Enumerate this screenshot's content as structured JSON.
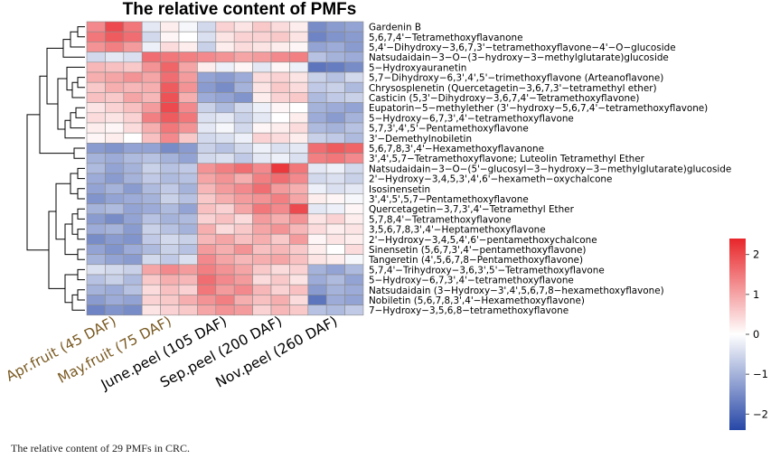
{
  "chart_data": {
    "type": "heatmap",
    "title": "The relative content of PMFs",
    "columns": [
      {
        "label": "Apr.fruit (45 DAF)",
        "color": "#7a5a22"
      },
      {
        "label": "May.fruit (75 DAF)",
        "color": "#7a5a22"
      },
      {
        "label": "June.peel (105 DAF)",
        "color": "#000000"
      },
      {
        "label": "Sep.peel (200 DAF)",
        "color": "#000000"
      },
      {
        "label": "Nov.peel (260 DAF)",
        "color": "#000000"
      }
    ],
    "replicates_per_group": 3,
    "rows": [
      {
        "label": "Gardenin B",
        "values": [
          1.3,
          2.0,
          1.5,
          -0.3,
          0.2,
          -0.1,
          -0.5,
          0.5,
          0.3,
          0.6,
          0.4,
          0.2,
          -1.5,
          -1.3,
          -1.2
        ]
      },
      {
        "label": "5,6,7,4'−Tetramethoxyflavanone",
        "values": [
          1.5,
          1.8,
          1.6,
          -0.5,
          0.1,
          0.0,
          -0.4,
          0.3,
          0.5,
          0.5,
          0.6,
          0.3,
          -1.6,
          -1.4,
          -1.3
        ]
      },
      {
        "label": "5,4'−Dihydroxy−3,6,7,3'−tetramethoxyflavone−4'−O−glucoside",
        "values": [
          1.2,
          1.4,
          1.1,
          -0.2,
          0.4,
          0.2,
          -0.6,
          0.2,
          0.4,
          0.3,
          0.2,
          0.1,
          -1.2,
          -1.1,
          -1.3
        ]
      },
      {
        "label": "Natsudaidain−3−O−(3−hydroxy−3−methylglutarate)glucoside",
        "values": [
          -0.5,
          -0.3,
          -0.4,
          1.6,
          1.5,
          1.4,
          1.3,
          1.2,
          1.0,
          1.1,
          1.3,
          1.4,
          -0.8,
          -1.0,
          -1.1
        ]
      },
      {
        "label": "5−Hydroxyauranetin",
        "values": [
          0.8,
          0.7,
          0.6,
          1.2,
          1.7,
          1.0,
          0.2,
          -0.2,
          0.1,
          -0.3,
          0.1,
          -0.2,
          -1.8,
          -1.7,
          -1.5
        ]
      },
      {
        "label": "5,7−Dihydroxy−6,3',4',5'−trimethoxyflavone (Arteanoflavone)",
        "values": [
          0.9,
          1.0,
          1.2,
          1.0,
          1.6,
          1.1,
          -1.2,
          -1.3,
          -1.1,
          0.4,
          0.5,
          0.3,
          -0.6,
          -0.8,
          -0.5
        ]
      },
      {
        "label": "Chrysosplenetin (Quercetagetin−3,6,7,3'−tetramethyl ether)",
        "values": [
          0.6,
          0.9,
          0.8,
          0.9,
          1.8,
          1.2,
          -1.3,
          -1.5,
          -1.0,
          0.3,
          0.6,
          0.4,
          -0.7,
          -0.6,
          -0.9
        ]
      },
      {
        "label": "Casticin (5,3'−Dihydroxy−3,6,7,4'−Tetramethoxyflavone)",
        "values": [
          0.7,
          0.6,
          1.0,
          0.8,
          1.9,
          0.9,
          -1.1,
          -1.2,
          -1.4,
          0.2,
          0.5,
          0.6,
          -0.9,
          -0.7,
          -0.6
        ]
      },
      {
        "label": "Eupatorin−5−methylether (3'−hydroxy−5,6,7,4'−tetramethoxyflavone)",
        "values": [
          0.3,
          0.5,
          0.7,
          1.1,
          2.0,
          1.3,
          -0.6,
          -0.9,
          -0.5,
          -0.2,
          0.1,
          0.0,
          -1.0,
          -1.1,
          -1.2
        ]
      },
      {
        "label": "5−Hydroxy−6,7,3',4'−tetramethoxyflavone",
        "values": [
          0.4,
          0.3,
          0.5,
          1.4,
          1.8,
          1.5,
          -0.4,
          -0.3,
          -0.6,
          -0.3,
          0.0,
          0.2,
          -1.1,
          -1.3,
          -1.0
        ]
      },
      {
        "label": "5,7,3',4',5'−Pentamethoxyflavone",
        "values": [
          0.2,
          0.1,
          0.4,
          0.9,
          1.5,
          1.2,
          -0.3,
          -0.1,
          -0.5,
          0.1,
          0.2,
          0.4,
          -0.9,
          -1.0,
          -0.8
        ]
      },
      {
        "label": "3'−Demethylnobiletin",
        "values": [
          0.1,
          0.2,
          0.0,
          0.7,
          1.3,
          0.6,
          -0.5,
          -0.4,
          -0.2,
          0.5,
          0.4,
          0.2,
          -0.6,
          -0.7,
          -0.9
        ]
      },
      {
        "label": "5,6,7,8,3',4'−Hexamethoxyflavanone",
        "values": [
          -1.3,
          -1.4,
          -1.2,
          -1.2,
          -1.5,
          -1.3,
          -0.6,
          -0.8,
          -0.5,
          -0.2,
          -0.4,
          -0.3,
          1.6,
          1.8,
          1.7
        ]
      },
      {
        "label": "3',4',5,7−Tetramethoxyflavone; Luteolin Tetramethyl Ether",
        "values": [
          -1.0,
          -1.1,
          -0.9,
          -0.8,
          -1.0,
          -1.2,
          -0.5,
          -0.4,
          -0.7,
          -0.3,
          -0.2,
          -0.4,
          1.4,
          1.5,
          1.3
        ]
      },
      {
        "label": "Natsudaidain−3−O−(5'−glucosyl−3−hydroxy−3−methylglutarate)glucoside",
        "values": [
          -0.9,
          -1.2,
          -1.0,
          -0.6,
          -0.8,
          -0.7,
          1.2,
          1.4,
          1.6,
          1.3,
          2.2,
          1.5,
          -0.3,
          -0.2,
          -0.5
        ]
      },
      {
        "label": "2'−Hydroxy−3,4,5,3',4',6'−hexameth−oxychalcone",
        "values": [
          -1.1,
          -1.3,
          -1.0,
          -0.7,
          -0.9,
          -0.8,
          1.0,
          1.2,
          0.9,
          1.4,
          1.6,
          1.3,
          -0.5,
          -0.4,
          -0.6
        ]
      },
      {
        "label": "Isosinensetin",
        "values": [
          -1.2,
          -1.0,
          -1.3,
          -0.9,
          -0.7,
          -1.0,
          0.8,
          1.1,
          1.3,
          1.6,
          1.1,
          0.9,
          -0.2,
          -0.4,
          -0.3
        ]
      },
      {
        "label": "3',4',5',5,7−Pentamethoxyflavone",
        "values": [
          -1.4,
          -1.2,
          -1.1,
          -1.0,
          -0.6,
          -0.8,
          0.6,
          0.9,
          1.1,
          1.2,
          1.4,
          1.0,
          0.2,
          0.1,
          -0.1
        ]
      },
      {
        "label": "Quercetagetin−3,7,3',4'−Tetramethyl Ether",
        "values": [
          -1.0,
          -0.9,
          -1.2,
          -1.1,
          -0.9,
          -1.2,
          0.7,
          0.5,
          1.0,
          1.5,
          1.3,
          2.0,
          -0.3,
          -0.2,
          0.1
        ]
      },
      {
        "label": "5,7,8,4'−Tetramethoxyflavone",
        "values": [
          -1.3,
          -1.5,
          -1.2,
          -0.8,
          -1.0,
          -0.9,
          0.5,
          0.7,
          0.4,
          1.1,
          0.9,
          1.2,
          0.3,
          0.5,
          0.2
        ]
      },
      {
        "label": "3,5,6,7,8,3',4'−Heptamethoxyflavone",
        "values": [
          -1.1,
          -1.0,
          -1.3,
          -0.6,
          -0.8,
          -1.0,
          0.9,
          0.4,
          0.6,
          1.0,
          1.2,
          0.8,
          0.4,
          0.2,
          0.3
        ]
      },
      {
        "label": "2'−Hydroxy−3,4,5,4',6'−pentamethoxychalcone",
        "values": [
          -1.5,
          -1.3,
          -1.4,
          -0.7,
          -0.5,
          -0.6,
          0.8,
          1.0,
          0.7,
          0.9,
          0.6,
          1.1,
          0.1,
          0.3,
          0.2
        ]
      },
      {
        "label": "Sinensetin (5,6,7,3',4'−pentamethoxyflavone)",
        "values": [
          -1.2,
          -1.4,
          -1.1,
          -0.9,
          -0.6,
          -0.8,
          1.1,
          0.9,
          1.2,
          0.7,
          0.8,
          0.6,
          0.2,
          0.0,
          0.4
        ]
      },
      {
        "label": "Tangeretin (4',5,6,7,8−Pentamethoxyflavone)",
        "values": [
          -1.0,
          -1.2,
          -1.3,
          -0.5,
          -0.7,
          -0.4,
          1.3,
          1.0,
          0.8,
          0.9,
          1.0,
          0.7,
          0.3,
          0.2,
          -0.1
        ]
      },
      {
        "label": "5,7,4'−Trihydroxy−3,6,3',5'−Tetramethoxyflavone",
        "values": [
          -0.4,
          -0.5,
          -0.6,
          1.0,
          1.3,
          1.1,
          1.4,
          1.2,
          1.0,
          0.6,
          0.4,
          0.5,
          -1.0,
          -1.2,
          -0.9
        ]
      },
      {
        "label": "5−Hydroxy−6,7,3',4'−tetramethoxyflavone",
        "values": [
          -0.8,
          -0.6,
          -0.9,
          0.6,
          0.9,
          0.8,
          1.6,
          1.3,
          1.1,
          0.4,
          0.6,
          0.3,
          -1.1,
          -0.9,
          -1.2
        ]
      },
      {
        "label": "Natsudaidain (3−Hydroxy−3',4',5,6,7,8−hexamethoxyflavone)",
        "values": [
          -1.0,
          -1.1,
          -0.8,
          0.4,
          0.7,
          0.5,
          1.5,
          1.1,
          1.3,
          0.8,
          0.5,
          0.7,
          -1.3,
          -1.0,
          -1.1
        ]
      },
      {
        "label": "Nobiletin (5,6,7,8,3',4'−Hexamethoxyflavone)",
        "values": [
          -1.3,
          -1.1,
          -1.2,
          0.5,
          0.6,
          0.9,
          1.2,
          1.4,
          0.9,
          0.7,
          0.9,
          0.4,
          -1.8,
          -1.1,
          -1.2
        ]
      },
      {
        "label": "7−Hydroxy−3,5,6,8−tetramethoxyflavone",
        "values": [
          -1.6,
          -1.4,
          -1.5,
          0.3,
          0.5,
          0.6,
          1.0,
          1.2,
          1.1,
          0.5,
          0.8,
          0.6,
          -0.8,
          -0.9,
          -0.7
        ]
      }
    ],
    "colorbar": {
      "min": -2.4,
      "max": 2.4,
      "ticks": [
        2,
        1,
        0,
        -1,
        -2
      ],
      "tick_labels": [
        "2",
        "1",
        "0",
        "−1",
        "−2"
      ],
      "colors": {
        "low": "#2747a7",
        "mid": "#ffffff",
        "high": "#e8262a"
      }
    },
    "dendrogram": "rows clustered; columns not clustered"
  },
  "caption": "The relative content of 29 PMFs in CRC."
}
